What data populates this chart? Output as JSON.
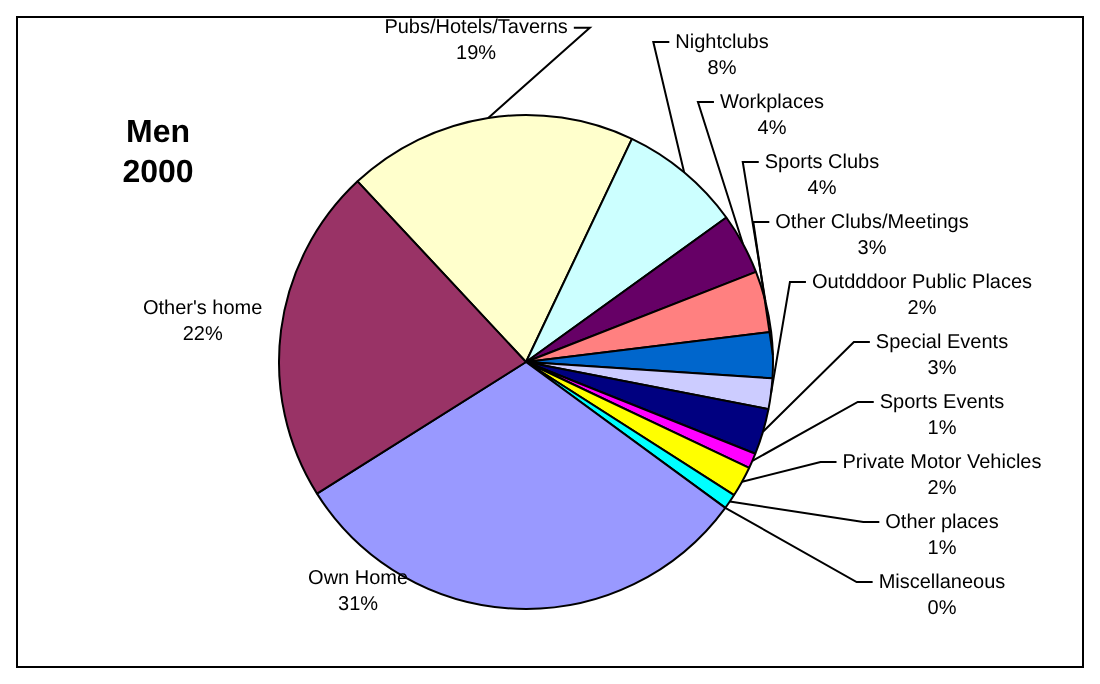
{
  "chart_data": {
    "type": "pie",
    "title": "Men 2000",
    "categories": [
      "Pubs/Hotels/Taverns",
      "Nightclubs",
      "Workplaces",
      "Sports Clubs",
      "Other Clubs/Meetings",
      "Outdddoor Public Places",
      "Special Events",
      "Sports Events",
      "Private Motor Vehicles",
      "Other places",
      "Miscellaneous",
      "Own Home",
      "Other's home"
    ],
    "values": [
      19,
      8,
      4,
      4,
      3,
      2,
      3,
      1,
      2,
      1,
      0,
      31,
      22
    ],
    "value_labels": [
      "19%",
      "8%",
      "4%",
      "4%",
      "3%",
      "2%",
      "3%",
      "1%",
      "2%",
      "1%",
      "0%",
      "31%",
      "22%"
    ],
    "colors": [
      "#ffffcc",
      "#ccffff",
      "#660066",
      "#ff8080",
      "#0066cc",
      "#ccccff",
      "#000080",
      "#ff00ff",
      "#ffff00",
      "#00ffff",
      "#800080",
      "#9999ff",
      "#993366"
    ],
    "legend": false
  }
}
